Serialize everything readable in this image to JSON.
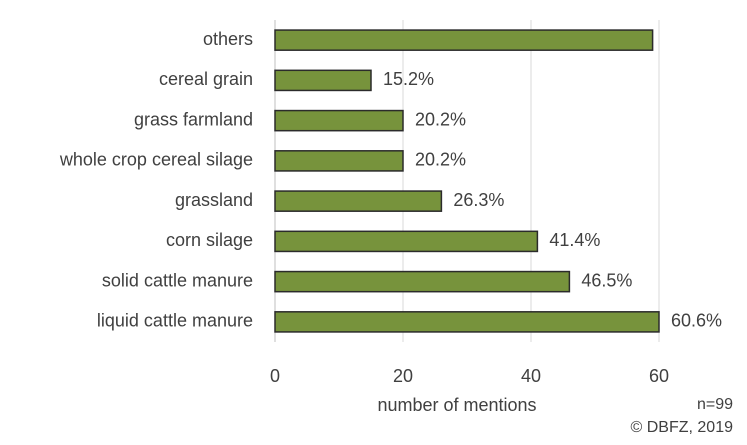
{
  "chart_data": {
    "type": "bar",
    "orientation": "horizontal",
    "categories": [
      "others",
      "cereal grain",
      "grass farmland",
      "whole crop cereal silage",
      "grassland",
      "corn silage",
      "solid cattle manure",
      "liquid cattle manure"
    ],
    "values": [
      59,
      15,
      20,
      20,
      26,
      41,
      46,
      60
    ],
    "data_labels": [
      "",
      "15.2%",
      "20.2%",
      "20.2%",
      "26.3%",
      "41.4%",
      "46.5%",
      "60.6%"
    ],
    "title": "",
    "xlabel": "number of mentions",
    "ylabel": "",
    "xlim": [
      0,
      60
    ],
    "xticks": [
      0,
      20,
      40,
      60
    ],
    "grid": "vertical",
    "legend": "none",
    "bar_color": "#77933c",
    "bar_edge_color": "#2b2b2b"
  },
  "notes": {
    "sample_size": "n=99",
    "copyright": "© DBFZ, 2019"
  }
}
